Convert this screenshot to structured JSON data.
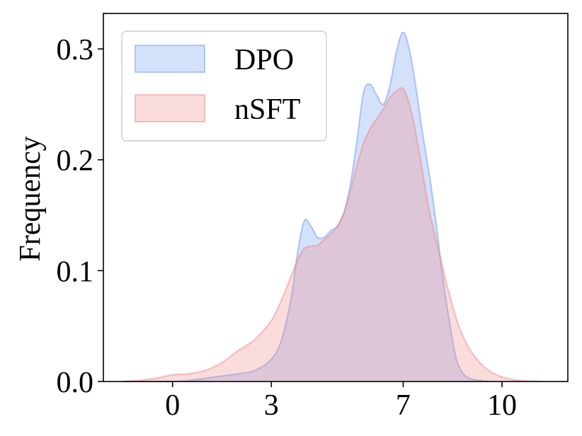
{
  "chart_data": {
    "type": "area",
    "title": "",
    "xlabel": "",
    "ylabel": "Frequency",
    "xlim": [
      -2.1,
      12.0
    ],
    "ylim": [
      0.0,
      0.332
    ],
    "x_ticks": [
      0,
      3,
      7,
      10
    ],
    "x_tick_labels": [
      "0",
      "3",
      "7",
      "10"
    ],
    "y_ticks": [
      0.0,
      0.1,
      0.2,
      0.3
    ],
    "y_tick_labels": [
      "0.0",
      "0.1",
      "0.2",
      "0.3"
    ],
    "grid": false,
    "legend_position": "top-left",
    "series": [
      {
        "name": "DPO",
        "color": "#6495ED",
        "fill_opacity": 0.28,
        "line_opacity": 0.45,
        "x": [
          -1.5,
          -0.5,
          0,
          0.5,
          1,
          1.5,
          2,
          2.5,
          3,
          3.3,
          3.6,
          3.8,
          4.0,
          4.2,
          4.4,
          4.6,
          4.8,
          5.0,
          5.2,
          5.4,
          5.6,
          5.8,
          6.0,
          6.2,
          6.4,
          6.6,
          6.8,
          7.0,
          7.2,
          7.4,
          7.6,
          7.8,
          8.0,
          8.2,
          8.4,
          8.6,
          8.8,
          9.0,
          9.3,
          9.6
        ],
        "y": [
          0.0,
          0.0,
          0.0,
          0.001,
          0.003,
          0.005,
          0.007,
          0.01,
          0.02,
          0.037,
          0.075,
          0.117,
          0.145,
          0.14,
          0.13,
          0.13,
          0.136,
          0.14,
          0.152,
          0.178,
          0.218,
          0.261,
          0.268,
          0.258,
          0.25,
          0.267,
          0.298,
          0.315,
          0.298,
          0.263,
          0.222,
          0.186,
          0.143,
          0.095,
          0.055,
          0.022,
          0.008,
          0.003,
          0.001,
          0.0
        ]
      },
      {
        "name": "nSFT",
        "color": "#F08080",
        "fill_opacity": 0.28,
        "line_opacity": 0.45,
        "x": [
          -1.5,
          -1.0,
          -0.5,
          0,
          0.5,
          1,
          1.5,
          2,
          2.5,
          3,
          3.3,
          3.6,
          3.8,
          4.0,
          4.2,
          4.4,
          4.6,
          4.8,
          5.0,
          5.2,
          5.4,
          5.6,
          5.8,
          6.0,
          6.2,
          6.4,
          6.6,
          6.8,
          7.0,
          7.2,
          7.4,
          7.6,
          7.8,
          8.0,
          8.2,
          8.4,
          8.6,
          8.8,
          9.0,
          9.3,
          9.6,
          10.0,
          10.5,
          11.2
        ],
        "y": [
          0.0,
          0.001,
          0.003,
          0.006,
          0.007,
          0.01,
          0.017,
          0.028,
          0.038,
          0.055,
          0.073,
          0.095,
          0.11,
          0.12,
          0.122,
          0.123,
          0.128,
          0.133,
          0.14,
          0.152,
          0.172,
          0.195,
          0.215,
          0.228,
          0.237,
          0.246,
          0.256,
          0.262,
          0.264,
          0.249,
          0.222,
          0.187,
          0.153,
          0.128,
          0.103,
          0.079,
          0.058,
          0.042,
          0.03,
          0.018,
          0.01,
          0.004,
          0.001,
          0.0
        ]
      }
    ]
  }
}
